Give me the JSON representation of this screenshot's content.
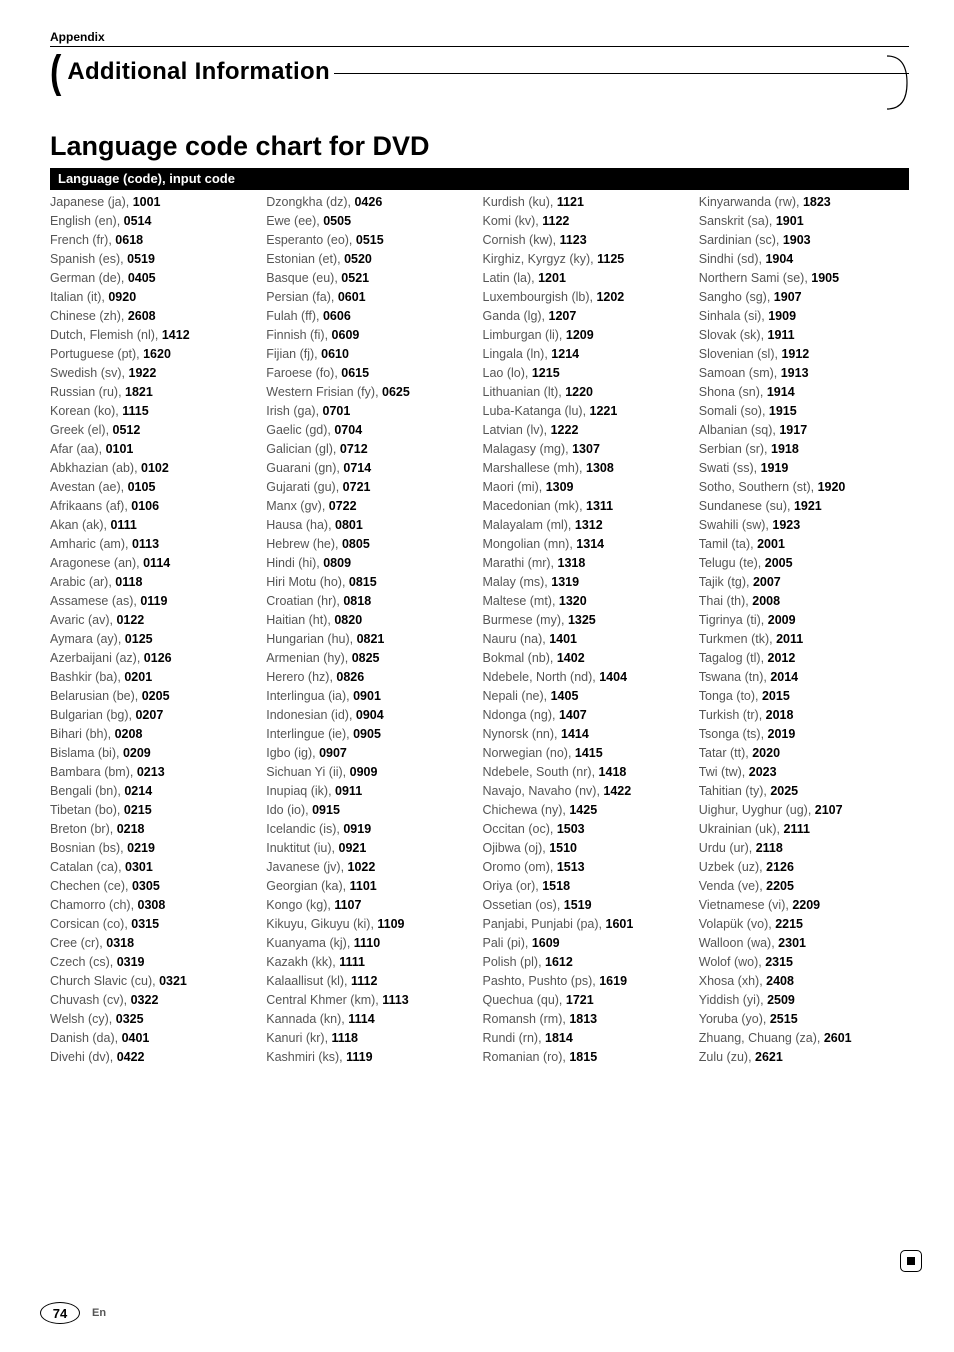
{
  "appendix_label": "Appendix",
  "section_title": "Additional Information",
  "chart_title": "Language code chart for DVD",
  "table_header": "Language (code), input code",
  "page_number": "74",
  "lang_label": "En",
  "columns": [
    [
      {
        "t": "Japanese (ja), ",
        "c": "1001"
      },
      {
        "t": "English (en), ",
        "c": "0514"
      },
      {
        "t": "French (fr), ",
        "c": "0618"
      },
      {
        "t": "Spanish (es), ",
        "c": "0519"
      },
      {
        "t": "German (de), ",
        "c": "0405"
      },
      {
        "t": "Italian (it), ",
        "c": "0920"
      },
      {
        "t": "Chinese (zh), ",
        "c": "2608"
      },
      {
        "t": "Dutch, Flemish (nl), ",
        "c": "1412"
      },
      {
        "t": "Portuguese (pt), ",
        "c": "1620"
      },
      {
        "t": "Swedish (sv), ",
        "c": "1922"
      },
      {
        "t": "Russian (ru), ",
        "c": "1821"
      },
      {
        "t": "Korean (ko), ",
        "c": "1115"
      },
      {
        "t": "Greek (el), ",
        "c": "0512"
      },
      {
        "t": "Afar (aa), ",
        "c": "0101"
      },
      {
        "t": "Abkhazian (ab), ",
        "c": "0102"
      },
      {
        "t": "Avestan (ae), ",
        "c": "0105"
      },
      {
        "t": "Afrikaans (af), ",
        "c": "0106"
      },
      {
        "t": "Akan (ak), ",
        "c": "0111"
      },
      {
        "t": "Amharic (am), ",
        "c": "0113"
      },
      {
        "t": "Aragonese (an), ",
        "c": "0114"
      },
      {
        "t": "Arabic (ar), ",
        "c": "0118"
      },
      {
        "t": "Assamese (as), ",
        "c": "0119"
      },
      {
        "t": "Avaric (av), ",
        "c": "0122"
      },
      {
        "t": "Aymara (ay), ",
        "c": "0125"
      },
      {
        "t": "Azerbaijani (az), ",
        "c": "0126"
      },
      {
        "t": "Bashkir (ba), ",
        "c": "0201"
      },
      {
        "t": "Belarusian (be), ",
        "c": "0205"
      },
      {
        "t": "Bulgarian (bg), ",
        "c": "0207"
      },
      {
        "t": "Bihari (bh), ",
        "c": "0208"
      },
      {
        "t": "Bislama (bi), ",
        "c": "0209"
      },
      {
        "t": "Bambara (bm), ",
        "c": "0213"
      },
      {
        "t": "Bengali (bn), ",
        "c": "0214"
      },
      {
        "t": "Tibetan (bo), ",
        "c": "0215"
      },
      {
        "t": "Breton (br), ",
        "c": "0218"
      },
      {
        "t": "Bosnian (bs), ",
        "c": "0219"
      },
      {
        "t": "Catalan (ca), ",
        "c": "0301"
      },
      {
        "t": "Chechen (ce), ",
        "c": "0305"
      },
      {
        "t": "Chamorro (ch), ",
        "c": "0308"
      },
      {
        "t": "Corsican (co), ",
        "c": "0315"
      },
      {
        "t": "Cree (cr), ",
        "c": "0318"
      },
      {
        "t": "Czech (cs), ",
        "c": "0319"
      },
      {
        "t": "Church Slavic (cu), ",
        "c": "0321"
      },
      {
        "t": "Chuvash (cv), ",
        "c": "0322"
      },
      {
        "t": "Welsh (cy), ",
        "c": "0325"
      },
      {
        "t": "Danish (da), ",
        "c": "0401"
      },
      {
        "t": "Divehi (dv), ",
        "c": "0422"
      }
    ],
    [
      {
        "t": "Dzongkha (dz), ",
        "c": "0426"
      },
      {
        "t": "Ewe (ee), ",
        "c": "0505"
      },
      {
        "t": "Esperanto (eo), ",
        "c": "0515"
      },
      {
        "t": "Estonian (et), ",
        "c": "0520"
      },
      {
        "t": "Basque (eu), ",
        "c": "0521"
      },
      {
        "t": "Persian (fa), ",
        "c": "0601"
      },
      {
        "t": "Fulah (ff), ",
        "c": "0606"
      },
      {
        "t": "Finnish (fi), ",
        "c": "0609"
      },
      {
        "t": "Fijian (fj), ",
        "c": "0610"
      },
      {
        "t": "Faroese (fo), ",
        "c": "0615"
      },
      {
        "t": "Western Frisian (fy), ",
        "c": "0625"
      },
      {
        "t": "Irish (ga), ",
        "c": "0701"
      },
      {
        "t": "Gaelic (gd), ",
        "c": "0704"
      },
      {
        "t": "Galician (gl), ",
        "c": "0712"
      },
      {
        "t": "Guarani (gn), ",
        "c": "0714"
      },
      {
        "t": "Gujarati (gu), ",
        "c": "0721"
      },
      {
        "t": "Manx (gv), ",
        "c": "0722"
      },
      {
        "t": "Hausa (ha), ",
        "c": "0801"
      },
      {
        "t": "Hebrew (he), ",
        "c": "0805"
      },
      {
        "t": "Hindi (hi), ",
        "c": "0809"
      },
      {
        "t": "Hiri Motu (ho), ",
        "c": "0815"
      },
      {
        "t": "Croatian (hr), ",
        "c": "0818"
      },
      {
        "t": "Haitian (ht), ",
        "c": "0820"
      },
      {
        "t": "Hungarian (hu), ",
        "c": "0821"
      },
      {
        "t": "Armenian (hy), ",
        "c": "0825"
      },
      {
        "t": "Herero (hz), ",
        "c": "0826"
      },
      {
        "t": "Interlingua (ia), ",
        "c": "0901"
      },
      {
        "t": "Indonesian (id), ",
        "c": "0904"
      },
      {
        "t": "Interlingue (ie), ",
        "c": "0905"
      },
      {
        "t": "Igbo (ig), ",
        "c": "0907"
      },
      {
        "t": "Sichuan Yi (ii), ",
        "c": "0909"
      },
      {
        "t": "Inupiaq (ik), ",
        "c": "0911"
      },
      {
        "t": "Ido (io), ",
        "c": "0915"
      },
      {
        "t": "Icelandic (is), ",
        "c": "0919"
      },
      {
        "t": "Inuktitut (iu), ",
        "c": "0921"
      },
      {
        "t": "Javanese (jv), ",
        "c": "1022"
      },
      {
        "t": "Georgian (ka), ",
        "c": "1101"
      },
      {
        "t": "Kongo (kg), ",
        "c": "1107"
      },
      {
        "t": "Kikuyu, Gikuyu (ki), ",
        "c": "1109"
      },
      {
        "t": "Kuanyama (kj), ",
        "c": "1110"
      },
      {
        "t": "Kazakh (kk), ",
        "c": "1111"
      },
      {
        "t": "Kalaallisut (kl), ",
        "c": "1112"
      },
      {
        "t": "Central Khmer (km), ",
        "c": "1113"
      },
      {
        "t": "Kannada (kn), ",
        "c": "1114"
      },
      {
        "t": "Kanuri (kr), ",
        "c": "1118"
      },
      {
        "t": "Kashmiri (ks), ",
        "c": "1119"
      }
    ],
    [
      {
        "t": "Kurdish (ku), ",
        "c": "1121"
      },
      {
        "t": "Komi (kv), ",
        "c": "1122"
      },
      {
        "t": "Cornish (kw), ",
        "c": "1123"
      },
      {
        "t": "Kirghiz, Kyrgyz (ky), ",
        "c": "1125"
      },
      {
        "t": "Latin (la), ",
        "c": "1201"
      },
      {
        "t": "Luxembourgish (lb), ",
        "c": "1202"
      },
      {
        "t": "Ganda (lg), ",
        "c": "1207"
      },
      {
        "t": "Limburgan (li), ",
        "c": "1209"
      },
      {
        "t": "Lingala (ln), ",
        "c": "1214"
      },
      {
        "t": "Lao (lo), ",
        "c": "1215"
      },
      {
        "t": "Lithuanian (lt), ",
        "c": "1220"
      },
      {
        "t": "Luba-Katanga (lu), ",
        "c": "1221"
      },
      {
        "t": "Latvian (lv), ",
        "c": "1222"
      },
      {
        "t": "Malagasy (mg), ",
        "c": "1307"
      },
      {
        "t": "Marshallese (mh), ",
        "c": "1308"
      },
      {
        "t": "Maori (mi), ",
        "c": "1309"
      },
      {
        "t": "Macedonian (mk), ",
        "c": "1311"
      },
      {
        "t": "Malayalam (ml), ",
        "c": "1312"
      },
      {
        "t": "Mongolian (mn), ",
        "c": "1314"
      },
      {
        "t": "Marathi (mr), ",
        "c": "1318"
      },
      {
        "t": "Malay (ms), ",
        "c": "1319"
      },
      {
        "t": "Maltese (mt), ",
        "c": "1320"
      },
      {
        "t": "Burmese (my), ",
        "c": "1325"
      },
      {
        "t": "Nauru (na), ",
        "c": "1401"
      },
      {
        "t": "Bokmal (nb), ",
        "c": "1402"
      },
      {
        "t": "Ndebele, North (nd), ",
        "c": "1404"
      },
      {
        "t": "Nepali (ne), ",
        "c": "1405"
      },
      {
        "t": "Ndonga (ng), ",
        "c": "1407"
      },
      {
        "t": "Nynorsk (nn), ",
        "c": "1414"
      },
      {
        "t": "Norwegian (no), ",
        "c": "1415"
      },
      {
        "t": "Ndebele, South (nr), ",
        "c": "1418"
      },
      {
        "t": "Navajo, Navaho (nv), ",
        "c": "1422"
      },
      {
        "t": "Chichewa (ny), ",
        "c": "1425"
      },
      {
        "t": "Occitan (oc), ",
        "c": "1503"
      },
      {
        "t": "Ojibwa (oj), ",
        "c": "1510"
      },
      {
        "t": "Oromo (om), ",
        "c": "1513"
      },
      {
        "t": "Oriya (or), ",
        "c": "1518"
      },
      {
        "t": "Ossetian (os), ",
        "c": "1519"
      },
      {
        "t": "Panjabi, Punjabi (pa), ",
        "c": "1601"
      },
      {
        "t": "Pali (pi), ",
        "c": "1609"
      },
      {
        "t": "Polish (pl), ",
        "c": "1612"
      },
      {
        "t": "Pashto, Pushto (ps), ",
        "c": "1619"
      },
      {
        "t": "Quechua (qu), ",
        "c": "1721"
      },
      {
        "t": "Romansh (rm), ",
        "c": "1813"
      },
      {
        "t": "Rundi (rn), ",
        "c": "1814"
      },
      {
        "t": "Romanian (ro), ",
        "c": "1815"
      }
    ],
    [
      {
        "t": "Kinyarwanda (rw), ",
        "c": "1823"
      },
      {
        "t": "Sanskrit (sa), ",
        "c": "1901"
      },
      {
        "t": "Sardinian (sc), ",
        "c": "1903"
      },
      {
        "t": "Sindhi (sd), ",
        "c": "1904"
      },
      {
        "t": "Northern Sami (se), ",
        "c": "1905"
      },
      {
        "t": "Sangho (sg), ",
        "c": "1907"
      },
      {
        "t": "Sinhala (si), ",
        "c": "1909"
      },
      {
        "t": "Slovak (sk), ",
        "c": "1911"
      },
      {
        "t": "Slovenian (sl), ",
        "c": "1912"
      },
      {
        "t": "Samoan (sm), ",
        "c": "1913"
      },
      {
        "t": "Shona (sn), ",
        "c": "1914"
      },
      {
        "t": "Somali (so), ",
        "c": "1915"
      },
      {
        "t": "Albanian (sq), ",
        "c": "1917"
      },
      {
        "t": "Serbian (sr), ",
        "c": "1918"
      },
      {
        "t": "Swati (ss), ",
        "c": "1919"
      },
      {
        "t": "Sotho, Southern (st), ",
        "c": "1920"
      },
      {
        "t": "Sundanese (su), ",
        "c": "1921"
      },
      {
        "t": "Swahili (sw), ",
        "c": "1923"
      },
      {
        "t": "Tamil (ta), ",
        "c": "2001"
      },
      {
        "t": "Telugu (te), ",
        "c": "2005"
      },
      {
        "t": "Tajik (tg), ",
        "c": "2007"
      },
      {
        "t": "Thai (th), ",
        "c": "2008"
      },
      {
        "t": "Tigrinya (ti), ",
        "c": "2009"
      },
      {
        "t": "Turkmen (tk), ",
        "c": "2011"
      },
      {
        "t": "Tagalog (tl), ",
        "c": "2012"
      },
      {
        "t": "Tswana (tn), ",
        "c": "2014"
      },
      {
        "t": "Tonga (to), ",
        "c": "2015"
      },
      {
        "t": "Turkish (tr), ",
        "c": "2018"
      },
      {
        "t": "Tsonga (ts), ",
        "c": "2019"
      },
      {
        "t": "Tatar (tt), ",
        "c": "2020"
      },
      {
        "t": "Twi (tw), ",
        "c": "2023"
      },
      {
        "t": "Tahitian (ty), ",
        "c": "2025"
      },
      {
        "t": "Uighur, Uyghur (ug), ",
        "c": "2107"
      },
      {
        "t": "Ukrainian (uk), ",
        "c": "2111"
      },
      {
        "t": "Urdu (ur), ",
        "c": "2118"
      },
      {
        "t": "Uzbek (uz), ",
        "c": "2126"
      },
      {
        "t": "Venda (ve), ",
        "c": "2205"
      },
      {
        "t": "Vietnamese (vi), ",
        "c": "2209"
      },
      {
        "t": "Volapük (vo), ",
        "c": "2215"
      },
      {
        "t": "Walloon (wa), ",
        "c": "2301"
      },
      {
        "t": "Wolof (wo), ",
        "c": "2315"
      },
      {
        "t": "Xhosa (xh), ",
        "c": "2408"
      },
      {
        "t": "Yiddish (yi), ",
        "c": "2509"
      },
      {
        "t": "Yoruba (yo), ",
        "c": "2515"
      },
      {
        "t": "Zhuang, Chuang (za), ",
        "c": "2601"
      },
      {
        "t": "Zulu (zu), ",
        "c": "2621"
      }
    ]
  ]
}
